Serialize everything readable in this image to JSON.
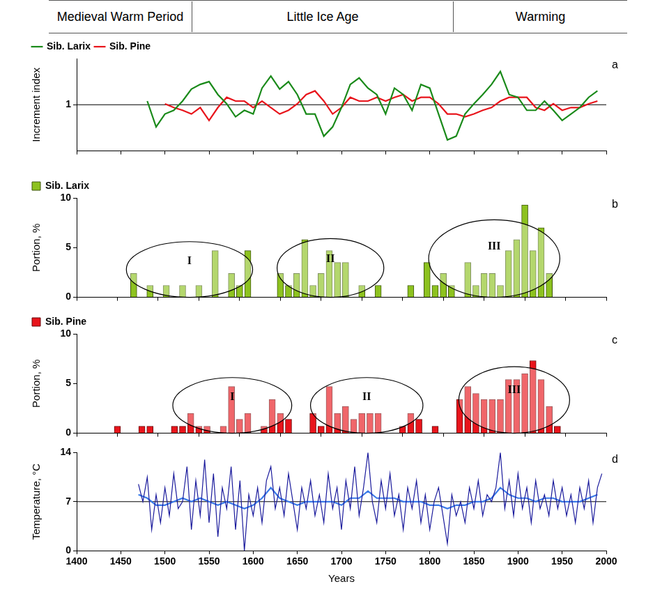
{
  "header": {
    "periods": [
      "Medieval Warm Period",
      "Little Ice Age",
      "Warming"
    ]
  },
  "chart_data": [
    {
      "type": "line",
      "label": "a",
      "y_label": "Increment index",
      "xlim": [
        1400,
        2000
      ],
      "xticks": [
        1400,
        1450,
        1500,
        1550,
        1600,
        1650,
        1700,
        1750,
        1800,
        1850,
        1900,
        1950,
        2000
      ],
      "ylim": [
        0.5,
        1.5
      ],
      "yticks": [
        1
      ],
      "reference_line": 1,
      "tick_labels": "y",
      "grid": false,
      "legend": "top-left",
      "series": [
        {
          "name": "Sib. Larix",
          "color": "#1a8a1a",
          "x": [
            1480,
            1490,
            1500,
            1510,
            1520,
            1530,
            1540,
            1550,
            1560,
            1570,
            1580,
            1590,
            1600,
            1610,
            1620,
            1630,
            1640,
            1650,
            1660,
            1670,
            1680,
            1690,
            1700,
            1710,
            1720,
            1730,
            1740,
            1750,
            1760,
            1770,
            1780,
            1790,
            1800,
            1810,
            1820,
            1830,
            1840,
            1850,
            1860,
            1870,
            1880,
            1890,
            1900,
            1910,
            1920,
            1930,
            1940,
            1950,
            1960,
            1970,
            1980,
            1990
          ],
          "values": [
            1.04,
            0.76,
            0.9,
            0.94,
            1.04,
            1.17,
            1.22,
            1.25,
            1.11,
            1.01,
            0.87,
            0.94,
            0.9,
            1.18,
            1.31,
            1.17,
            1.25,
            1.11,
            0.9,
            0.9,
            0.66,
            0.76,
            0.97,
            1.22,
            1.29,
            1.18,
            1.11,
            0.9,
            1.18,
            1.11,
            0.94,
            1.22,
            1.18,
            0.9,
            0.62,
            0.66,
            0.9,
            1.01,
            1.11,
            1.22,
            1.36,
            1.11,
            1.08,
            0.94,
            0.94,
            1.04,
            0.94,
            0.83,
            0.9,
            0.97,
            1.08,
            1.15
          ]
        },
        {
          "name": "Sib. Pine",
          "color": "#e8141b",
          "x": [
            1500,
            1510,
            1520,
            1530,
            1540,
            1550,
            1560,
            1570,
            1580,
            1590,
            1600,
            1610,
            1620,
            1630,
            1640,
            1650,
            1660,
            1670,
            1680,
            1690,
            1700,
            1710,
            1720,
            1730,
            1740,
            1750,
            1760,
            1770,
            1780,
            1790,
            1800,
            1810,
            1820,
            1830,
            1840,
            1850,
            1860,
            1870,
            1880,
            1890,
            1900,
            1910,
            1920,
            1930,
            1940,
            1950,
            1960,
            1970,
            1980,
            1990
          ],
          "values": [
            1.01,
            0.97,
            0.94,
            0.9,
            0.97,
            0.83,
            0.97,
            1.08,
            1.04,
            1.04,
            0.97,
            1.04,
            0.97,
            0.9,
            0.94,
            1.01,
            1.11,
            1.15,
            1.04,
            0.9,
            0.97,
            1.08,
            1.04,
            1.04,
            1.08,
            1.04,
            1.08,
            1.11,
            1.04,
            1.08,
            1.08,
            1.01,
            0.9,
            0.9,
            0.87,
            0.9,
            0.94,
            0.97,
            1.04,
            1.08,
            1.08,
            1.08,
            0.97,
            0.94,
            1.01,
            0.94,
            0.97,
            0.97,
            1.01,
            1.04
          ]
        }
      ]
    },
    {
      "type": "bar",
      "label": "b",
      "y_label": "Portion, %",
      "xlim": [
        1400,
        2000
      ],
      "xticks": [
        1400,
        1450,
        1500,
        1550,
        1600,
        1650,
        1700,
        1750,
        1800,
        1850,
        1900,
        1950,
        2000
      ],
      "ylim": [
        0,
        10
      ],
      "yticks": [
        0,
        5,
        10
      ],
      "tick_labels": "y",
      "grid": false,
      "legend": "top-left",
      "series": [
        {
          "name": "Sib. Larix",
          "color": "#8dc21f",
          "x": [
            1445,
            1465,
            1485,
            1505,
            1525,
            1545,
            1565,
            1575,
            1585,
            1625,
            1635,
            1645,
            1655,
            1665,
            1675,
            1685,
            1695,
            1705,
            1725,
            1745,
            1785,
            1805,
            1815,
            1825,
            1835,
            1855,
            1865,
            1875,
            1885,
            1895,
            1905,
            1915,
            1925,
            1935,
            1945,
            1955
          ],
          "values": [
            2.4,
            1.2,
            1.2,
            1.2,
            1.2,
            4.7,
            2.4,
            1.2,
            4.7,
            2.4,
            1.2,
            2.4,
            5.8,
            1.2,
            2.4,
            4.7,
            3.5,
            3.5,
            1.2,
            1.2,
            1.2,
            3.5,
            1.2,
            2.4,
            1.2,
            3.5,
            1.2,
            2.4,
            2.4,
            1.2,
            4.7,
            5.8,
            9.3,
            4.7,
            7.0,
            2.4
          ]
        }
      ],
      "annotations": [
        {
          "text": "I",
          "x": [
            1436,
            1591
          ],
          "y": [
            0,
            5.6
          ]
        },
        {
          "text": "II",
          "x": [
            1621,
            1752
          ],
          "y": [
            0,
            5.9
          ]
        },
        {
          "text": "III",
          "x": [
            1807,
            1968
          ],
          "y": [
            0,
            7.8
          ]
        }
      ]
    },
    {
      "type": "bar",
      "label": "c",
      "y_label": "Portion, %",
      "xlim": [
        1400,
        2000
      ],
      "xticks": [
        1400,
        1450,
        1500,
        1550,
        1600,
        1650,
        1700,
        1750,
        1800,
        1850,
        1900,
        1950,
        2000
      ],
      "ylim": [
        0,
        10
      ],
      "yticks": [
        0,
        5,
        10
      ],
      "tick_labels": "y",
      "grid": false,
      "legend": "top-left",
      "series": [
        {
          "name": "Sib. Pine",
          "color": "#e8141b",
          "x": [
            1425,
            1455,
            1465,
            1495,
            1505,
            1515,
            1525,
            1535,
            1555,
            1565,
            1575,
            1585,
            1605,
            1615,
            1625,
            1635,
            1665,
            1675,
            1685,
            1695,
            1705,
            1715,
            1725,
            1735,
            1745,
            1775,
            1785,
            1795,
            1815,
            1845,
            1855,
            1865,
            1875,
            1885,
            1895,
            1905,
            1915,
            1925,
            1935,
            1945,
            1955,
            1965
          ],
          "values": [
            0.7,
            0.7,
            0.7,
            0.7,
            0.7,
            2.0,
            0.7,
            0.7,
            0.7,
            4.7,
            1.4,
            2.0,
            0.7,
            3.4,
            2.0,
            1.4,
            2.0,
            0.7,
            4.7,
            2.0,
            2.7,
            1.4,
            2.0,
            2.0,
            2.0,
            0.7,
            2.0,
            1.4,
            0.7,
            3.4,
            4.7,
            4.0,
            3.4,
            3.4,
            3.4,
            5.4,
            5.4,
            6.0,
            7.3,
            5.4,
            2.7,
            0.7
          ]
        }
      ],
      "annotations": [
        {
          "text": "I",
          "x": [
            1493,
            1639
          ],
          "y": [
            0,
            5.6
          ]
        },
        {
          "text": "II",
          "x": [
            1662,
            1800
          ],
          "y": [
            0,
            5.6
          ]
        },
        {
          "text": "III",
          "x": [
            1844,
            1980
          ],
          "y": [
            0,
            6.7
          ]
        }
      ]
    },
    {
      "type": "line",
      "label": "d",
      "y_label": "Temperature, °C",
      "x_label": "Years",
      "xlim": [
        1400,
        2000
      ],
      "xticks": [
        1400,
        1450,
        1500,
        1550,
        1600,
        1650,
        1700,
        1750,
        1800,
        1850,
        1900,
        1950,
        2000
      ],
      "ylim": [
        0,
        14
      ],
      "yticks": [
        0,
        7,
        14
      ],
      "reference_line": 7,
      "grid": false,
      "series": [
        {
          "color": "#1a1a9c",
          "x": [
            1470,
            1475,
            1480,
            1485,
            1490,
            1495,
            1500,
            1505,
            1510,
            1515,
            1520,
            1525,
            1530,
            1535,
            1540,
            1545,
            1550,
            1555,
            1560,
            1565,
            1570,
            1575,
            1580,
            1585,
            1590,
            1595,
            1600,
            1605,
            1610,
            1615,
            1620,
            1625,
            1630,
            1635,
            1640,
            1645,
            1650,
            1655,
            1660,
            1665,
            1670,
            1675,
            1680,
            1685,
            1690,
            1695,
            1700,
            1705,
            1710,
            1715,
            1720,
            1725,
            1730,
            1735,
            1740,
            1745,
            1750,
            1755,
            1760,
            1765,
            1770,
            1775,
            1780,
            1785,
            1790,
            1795,
            1800,
            1805,
            1810,
            1815,
            1820,
            1825,
            1830,
            1835,
            1840,
            1845,
            1850,
            1855,
            1860,
            1865,
            1870,
            1875,
            1880,
            1885,
            1890,
            1895,
            1900,
            1905,
            1910,
            1915,
            1920,
            1925,
            1930,
            1935,
            1940,
            1945,
            1950,
            1955,
            1960,
            1965,
            1970,
            1975,
            1980,
            1985,
            1990,
            1995
          ],
          "values": [
            9.5,
            7,
            10.5,
            3,
            8,
            4,
            9,
            5,
            11,
            6,
            7,
            12,
            3,
            10,
            5,
            13,
            4,
            11,
            2,
            9,
            6,
            12,
            3,
            10,
            0,
            8,
            5,
            9,
            4,
            10,
            12,
            6,
            9,
            5,
            11,
            7,
            3,
            9,
            6,
            10,
            5,
            8,
            4,
            11,
            6,
            9,
            3,
            10,
            6,
            12,
            5,
            9,
            14,
            7,
            4,
            10,
            6,
            11,
            5,
            8,
            3,
            9,
            6,
            10,
            4,
            8,
            3,
            7,
            9,
            5,
            1,
            8,
            5,
            7,
            4,
            9,
            6,
            10,
            5,
            8,
            7,
            9,
            14,
            6,
            10,
            5,
            11,
            6,
            9,
            4,
            10,
            6,
            8,
            5,
            10,
            6,
            9,
            5,
            8,
            4,
            9,
            6,
            10,
            4,
            9,
            11
          ]
        },
        {
          "color": "#3a7ae8",
          "x": [
            1470,
            1480,
            1490,
            1500,
            1510,
            1520,
            1530,
            1540,
            1550,
            1560,
            1570,
            1580,
            1590,
            1600,
            1610,
            1620,
            1630,
            1640,
            1650,
            1660,
            1670,
            1680,
            1690,
            1700,
            1710,
            1720,
            1730,
            1740,
            1750,
            1760,
            1770,
            1780,
            1790,
            1800,
            1810,
            1820,
            1830,
            1840,
            1850,
            1860,
            1870,
            1880,
            1890,
            1900,
            1910,
            1920,
            1930,
            1940,
            1950,
            1960,
            1970,
            1980,
            1990
          ],
          "values": [
            8,
            7.5,
            6.5,
            6.5,
            7,
            7.5,
            7,
            7.5,
            7,
            6.5,
            7,
            6.5,
            6,
            6.5,
            7.5,
            9,
            7.5,
            7,
            6.5,
            7,
            7,
            7,
            7,
            6.5,
            7.5,
            7.5,
            8.5,
            7.5,
            7.5,
            7.5,
            7,
            7,
            7,
            6.5,
            6.5,
            6,
            6.5,
            6.5,
            7,
            7,
            7.5,
            9,
            8,
            7.5,
            7.5,
            7,
            7.5,
            7.5,
            7,
            7,
            7,
            7.5,
            8
          ]
        }
      ]
    }
  ]
}
